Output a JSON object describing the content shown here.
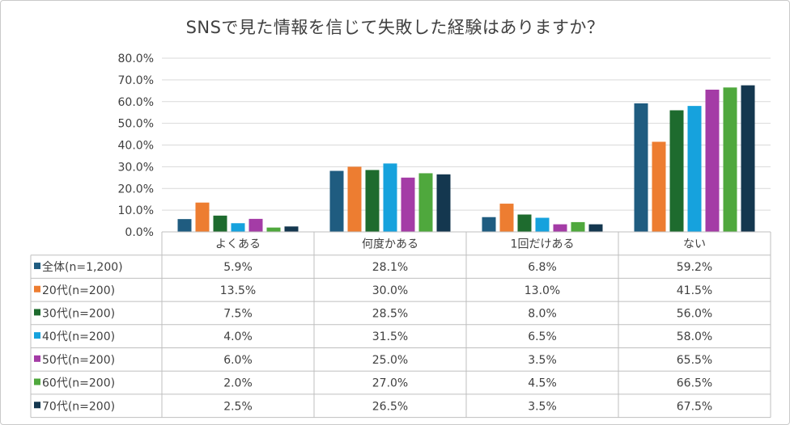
{
  "chart_data": {
    "type": "bar",
    "title": "SNSで見た情報を信じて失敗した経験はありますか？",
    "categories": [
      "よくある",
      "何度かある",
      "1回だけある",
      "ない"
    ],
    "ylim": [
      0,
      80
    ],
    "yticks": [
      "0.0%",
      "10.0%",
      "20.0%",
      "30.0%",
      "40.0%",
      "50.0%",
      "60.0%",
      "70.0%",
      "80.0%"
    ],
    "grid": true,
    "legend": "data-table",
    "series": [
      {
        "name": "全体(n=1,200)",
        "color": "#1f5c80",
        "values": [
          5.9,
          28.1,
          6.8,
          59.2
        ],
        "labels": [
          "5.9%",
          "28.1%",
          "6.8%",
          "59.2%"
        ]
      },
      {
        "name": "20代(n=200)",
        "color": "#ed7d31",
        "values": [
          13.5,
          30.0,
          13.0,
          41.5
        ],
        "labels": [
          "13.5%",
          "30.0%",
          "13.0%",
          "41.5%"
        ]
      },
      {
        "name": "30代(n=200)",
        "color": "#1e6b2e",
        "values": [
          7.5,
          28.5,
          8.0,
          56.0
        ],
        "labels": [
          "7.5%",
          "28.5%",
          "8.0%",
          "56.0%"
        ]
      },
      {
        "name": "40代(n=200)",
        "color": "#16a2dd",
        "values": [
          4.0,
          31.5,
          6.5,
          58.0
        ],
        "labels": [
          "4.0%",
          "31.5%",
          "6.5%",
          "58.0%"
        ]
      },
      {
        "name": "50代(n=200)",
        "color": "#a43ca6",
        "values": [
          6.0,
          25.0,
          3.5,
          65.5
        ],
        "labels": [
          "6.0%",
          "25.0%",
          "3.5%",
          "65.5%"
        ]
      },
      {
        "name": "60代(n=200)",
        "color": "#4fa83d",
        "values": [
          2.0,
          27.0,
          4.5,
          66.5
        ],
        "labels": [
          "2.0%",
          "27.0%",
          "4.5%",
          "66.5%"
        ]
      },
      {
        "name": "70代(n=200)",
        "color": "#14374f",
        "values": [
          2.5,
          26.5,
          3.5,
          67.5
        ],
        "labels": [
          "2.5%",
          "26.5%",
          "3.5%",
          "67.5%"
        ]
      }
    ]
  }
}
